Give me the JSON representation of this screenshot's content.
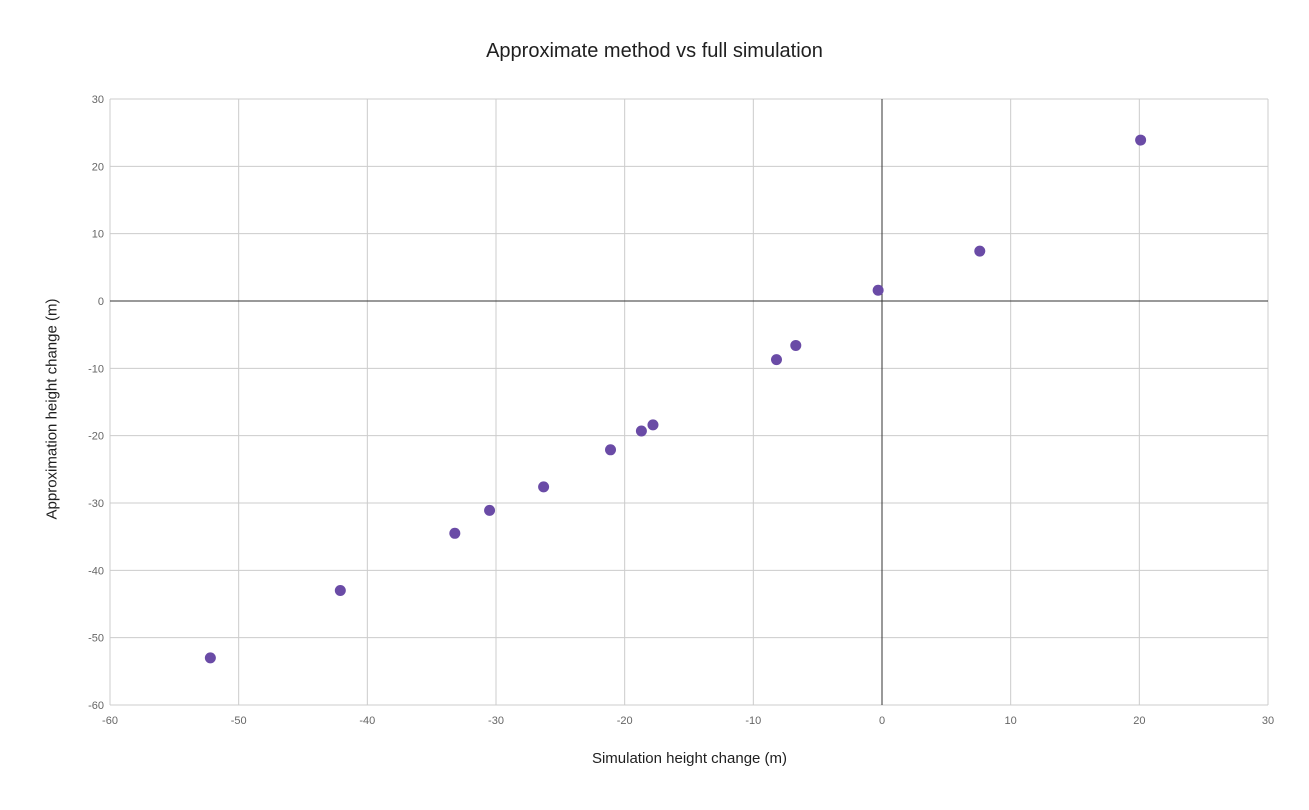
{
  "chart_data": {
    "type": "scatter",
    "title": "Approximate method vs full simulation",
    "xlabel": "Simulation height change (m)",
    "ylabel": "Approximation height change (m)",
    "xlim": [
      -60,
      30
    ],
    "ylim": [
      -60,
      30
    ],
    "x_ticks": [
      -60,
      -50,
      -40,
      -30,
      -20,
      -10,
      0,
      10,
      20,
      30
    ],
    "y_ticks": [
      -60,
      -50,
      -40,
      -30,
      -20,
      -10,
      0,
      10,
      20,
      30
    ],
    "grid": true,
    "legend": "none",
    "series": [
      {
        "color": "#6a4ba6",
        "points": [
          {
            "x": -52.2,
            "y": -53.0
          },
          {
            "x": -42.1,
            "y": -43.0
          },
          {
            "x": -33.2,
            "y": -34.5
          },
          {
            "x": -30.5,
            "y": -31.1
          },
          {
            "x": -26.3,
            "y": -27.6
          },
          {
            "x": -21.1,
            "y": -22.1
          },
          {
            "x": -18.7,
            "y": -19.3
          },
          {
            "x": -17.8,
            "y": -18.4
          },
          {
            "x": -8.2,
            "y": -8.7
          },
          {
            "x": -6.7,
            "y": -6.6
          },
          {
            "x": -0.3,
            "y": 1.6
          },
          {
            "x": 7.6,
            "y": 7.4
          },
          {
            "x": 20.1,
            "y": 23.9
          }
        ]
      }
    ]
  },
  "colors": {
    "grid": "#cccccc",
    "zero_axis": "#333333",
    "tick_text": "#666666",
    "marker": "#6a4ba6"
  }
}
